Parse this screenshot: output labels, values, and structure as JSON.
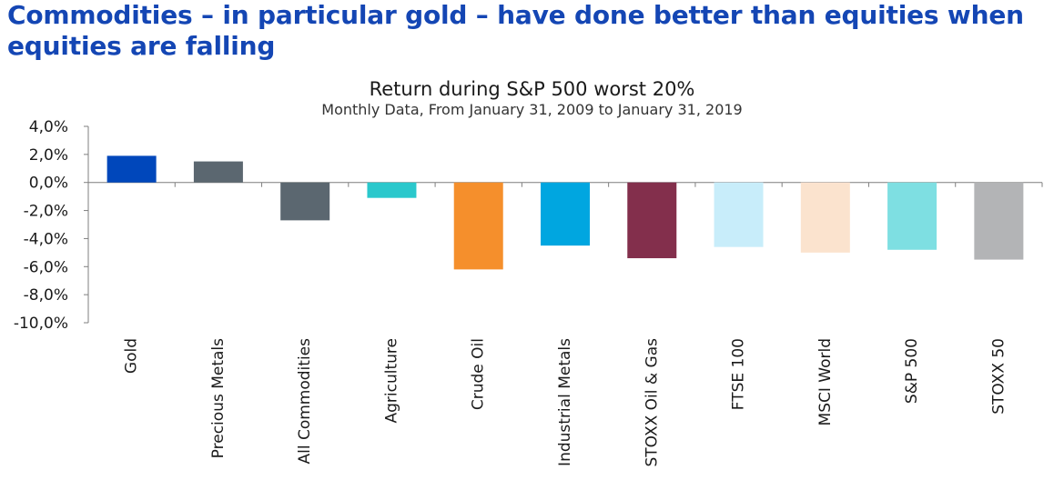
{
  "headline": "Commodities – in particular gold – have done better than equities when equities are falling",
  "chart_data": {
    "type": "bar",
    "title": "Return during S&P 500 worst 20%",
    "subtitle": "Monthly Data, From January 31, 2009 to January 31, 2019",
    "xlabel": "",
    "ylabel": "",
    "ylim": [
      -10,
      4
    ],
    "yticks": [
      4,
      2,
      0,
      -2,
      -4,
      -6,
      -8,
      -10
    ],
    "ytick_labels": [
      "4,0%",
      "2,0%",
      "0,0%",
      "-2,0%",
      "-4,0%",
      "-6,0%",
      "-8,0%",
      "-10,0%"
    ],
    "grid": false,
    "categories": [
      "Gold",
      "Precious Metals",
      "All Commodities",
      "Agriculture",
      "Crude Oil",
      "Industrial Metals",
      "STOXX Oil & Gas",
      "FTSE 100",
      "MSCI World",
      "S&P 500",
      "STOXX 50"
    ],
    "values": [
      1.9,
      1.5,
      -2.7,
      -1.1,
      -6.2,
      -4.5,
      -5.4,
      -4.6,
      -5.0,
      -4.8,
      -5.5
    ],
    "colors": [
      "#0047bb",
      "#5b6770",
      "#5b6770",
      "#2ac8cc",
      "#f58f2c",
      "#00a6e0",
      "#832f4c",
      "#c8edfa",
      "#fbe3ce",
      "#7edfe2",
      "#b3b4b6"
    ]
  }
}
